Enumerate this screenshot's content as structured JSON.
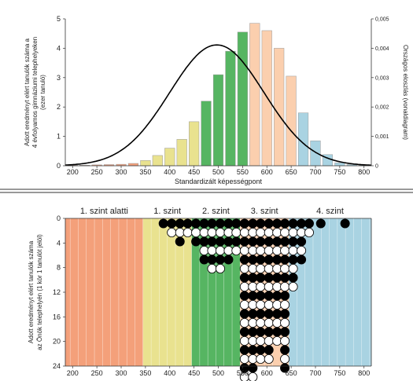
{
  "chart_data": [
    {
      "type": "bar",
      "xlabel": "Standardizált képességpont",
      "ylabel_lines": [
        "Adott eredményt elért tanulók száma a",
        "4 évfolyamos gimnáziumi telephelyeken",
        "(ezer tanuló)"
      ],
      "y2label": "Országos eloszlás (vonaldiagram)",
      "x": [
        200,
        225,
        250,
        275,
        300,
        325,
        350,
        375,
        400,
        425,
        450,
        475,
        500,
        525,
        550,
        575,
        600,
        625,
        650,
        675,
        700,
        725,
        750,
        775,
        800
      ],
      "values": [
        0.02,
        0.02,
        0.03,
        0.04,
        0.05,
        0.08,
        0.18,
        0.35,
        0.6,
        0.9,
        1.5,
        2.2,
        3.1,
        3.9,
        4.55,
        4.85,
        4.6,
        4.0,
        3.05,
        1.8,
        0.85,
        0.38,
        0.1,
        0.04,
        0.02
      ],
      "bar_colors": [
        "#f4a07a",
        "#f4a07a",
        "#f4a07a",
        "#f4a07a",
        "#f4a07a",
        "#f4a07a",
        "#e9e28f",
        "#e9e28f",
        "#e9e28f",
        "#e9e28f",
        "#e9e28f",
        "#56b562",
        "#56b562",
        "#56b562",
        "#56b562",
        "#fbcfae",
        "#fbcfae",
        "#fbcfae",
        "#fbcfae",
        "#a9d3e2",
        "#a9d3e2",
        "#a9d3e2",
        "#a9d3e2",
        "#a9d3e2",
        "#a9d3e2"
      ],
      "xlim": [
        185,
        815
      ],
      "ylim": [
        0,
        5
      ],
      "y2lim": [
        0,
        0.005
      ],
      "x_ticks": [
        200,
        250,
        300,
        350,
        400,
        450,
        500,
        550,
        600,
        650,
        700,
        750,
        800
      ],
      "y_ticks": [
        0,
        1,
        2,
        3,
        4,
        5
      ],
      "y2_ticks": [
        0,
        0.001,
        0.002,
        0.003,
        0.004,
        0.005
      ],
      "y2_tick_labels": [
        "0",
        "0,001",
        "0,002",
        "0,003",
        "0,004",
        "0,005"
      ],
      "line": {
        "mean": 497,
        "sd": 97,
        "color": "#000000"
      }
    },
    {
      "type": "scatter",
      "ylabel_lines": [
        "Adott eredményt elért tanulók száma",
        "az Önök telephelyén (1 kör 1 tanulót jelöl)"
      ],
      "xlim": [
        185,
        815
      ],
      "ylim": [
        24,
        0
      ],
      "x_ticks": [
        200,
        250,
        300,
        350,
        400,
        450,
        500,
        550,
        600,
        650,
        700,
        750,
        800
      ],
      "y_ticks": [
        0,
        4,
        8,
        12,
        16,
        20,
        24
      ],
      "levels": [
        {
          "label": "1. szint alatti",
          "from": 185,
          "to": 345,
          "color": "#f4a07a"
        },
        {
          "label": "1. szint",
          "from": 345,
          "to": 445,
          "color": "#e9e28f"
        },
        {
          "label": "2. szint",
          "from": 445,
          "to": 545,
          "color": "#56b562"
        },
        {
          "label": "3. szint",
          "from": 545,
          "to": 645,
          "color": "#fbcfae"
        },
        {
          "label": "4. szint",
          "from": 645,
          "to": 815,
          "color": "#a9d3e2"
        }
      ],
      "columns": [
        {
          "x": 387,
          "count": 1
        },
        {
          "x": 404,
          "count": 2
        },
        {
          "x": 421,
          "count": 3
        },
        {
          "x": 437,
          "count": 2
        },
        {
          "x": 454,
          "count": 3
        },
        {
          "x": 471,
          "count": 5
        },
        {
          "x": 487,
          "count": 6
        },
        {
          "x": 504,
          "count": 6
        },
        {
          "x": 521,
          "count": 5
        },
        {
          "x": 537,
          "count": 4
        },
        {
          "x": 554,
          "count": 20
        },
        {
          "x": 571,
          "count": 18
        },
        {
          "x": 587,
          "count": 16
        },
        {
          "x": 604,
          "count": 16
        },
        {
          "x": 621,
          "count": 14
        },
        {
          "x": 637,
          "count": 17
        },
        {
          "x": 654,
          "count": 8
        },
        {
          "x": 671,
          "count": 5
        },
        {
          "x": 687,
          "count": 2
        },
        {
          "x": 711,
          "count": 1
        },
        {
          "x": 761,
          "count": 1
        }
      ],
      "dot_colors": {
        "odd": "#000000",
        "even": "#ffffff"
      }
    }
  ]
}
